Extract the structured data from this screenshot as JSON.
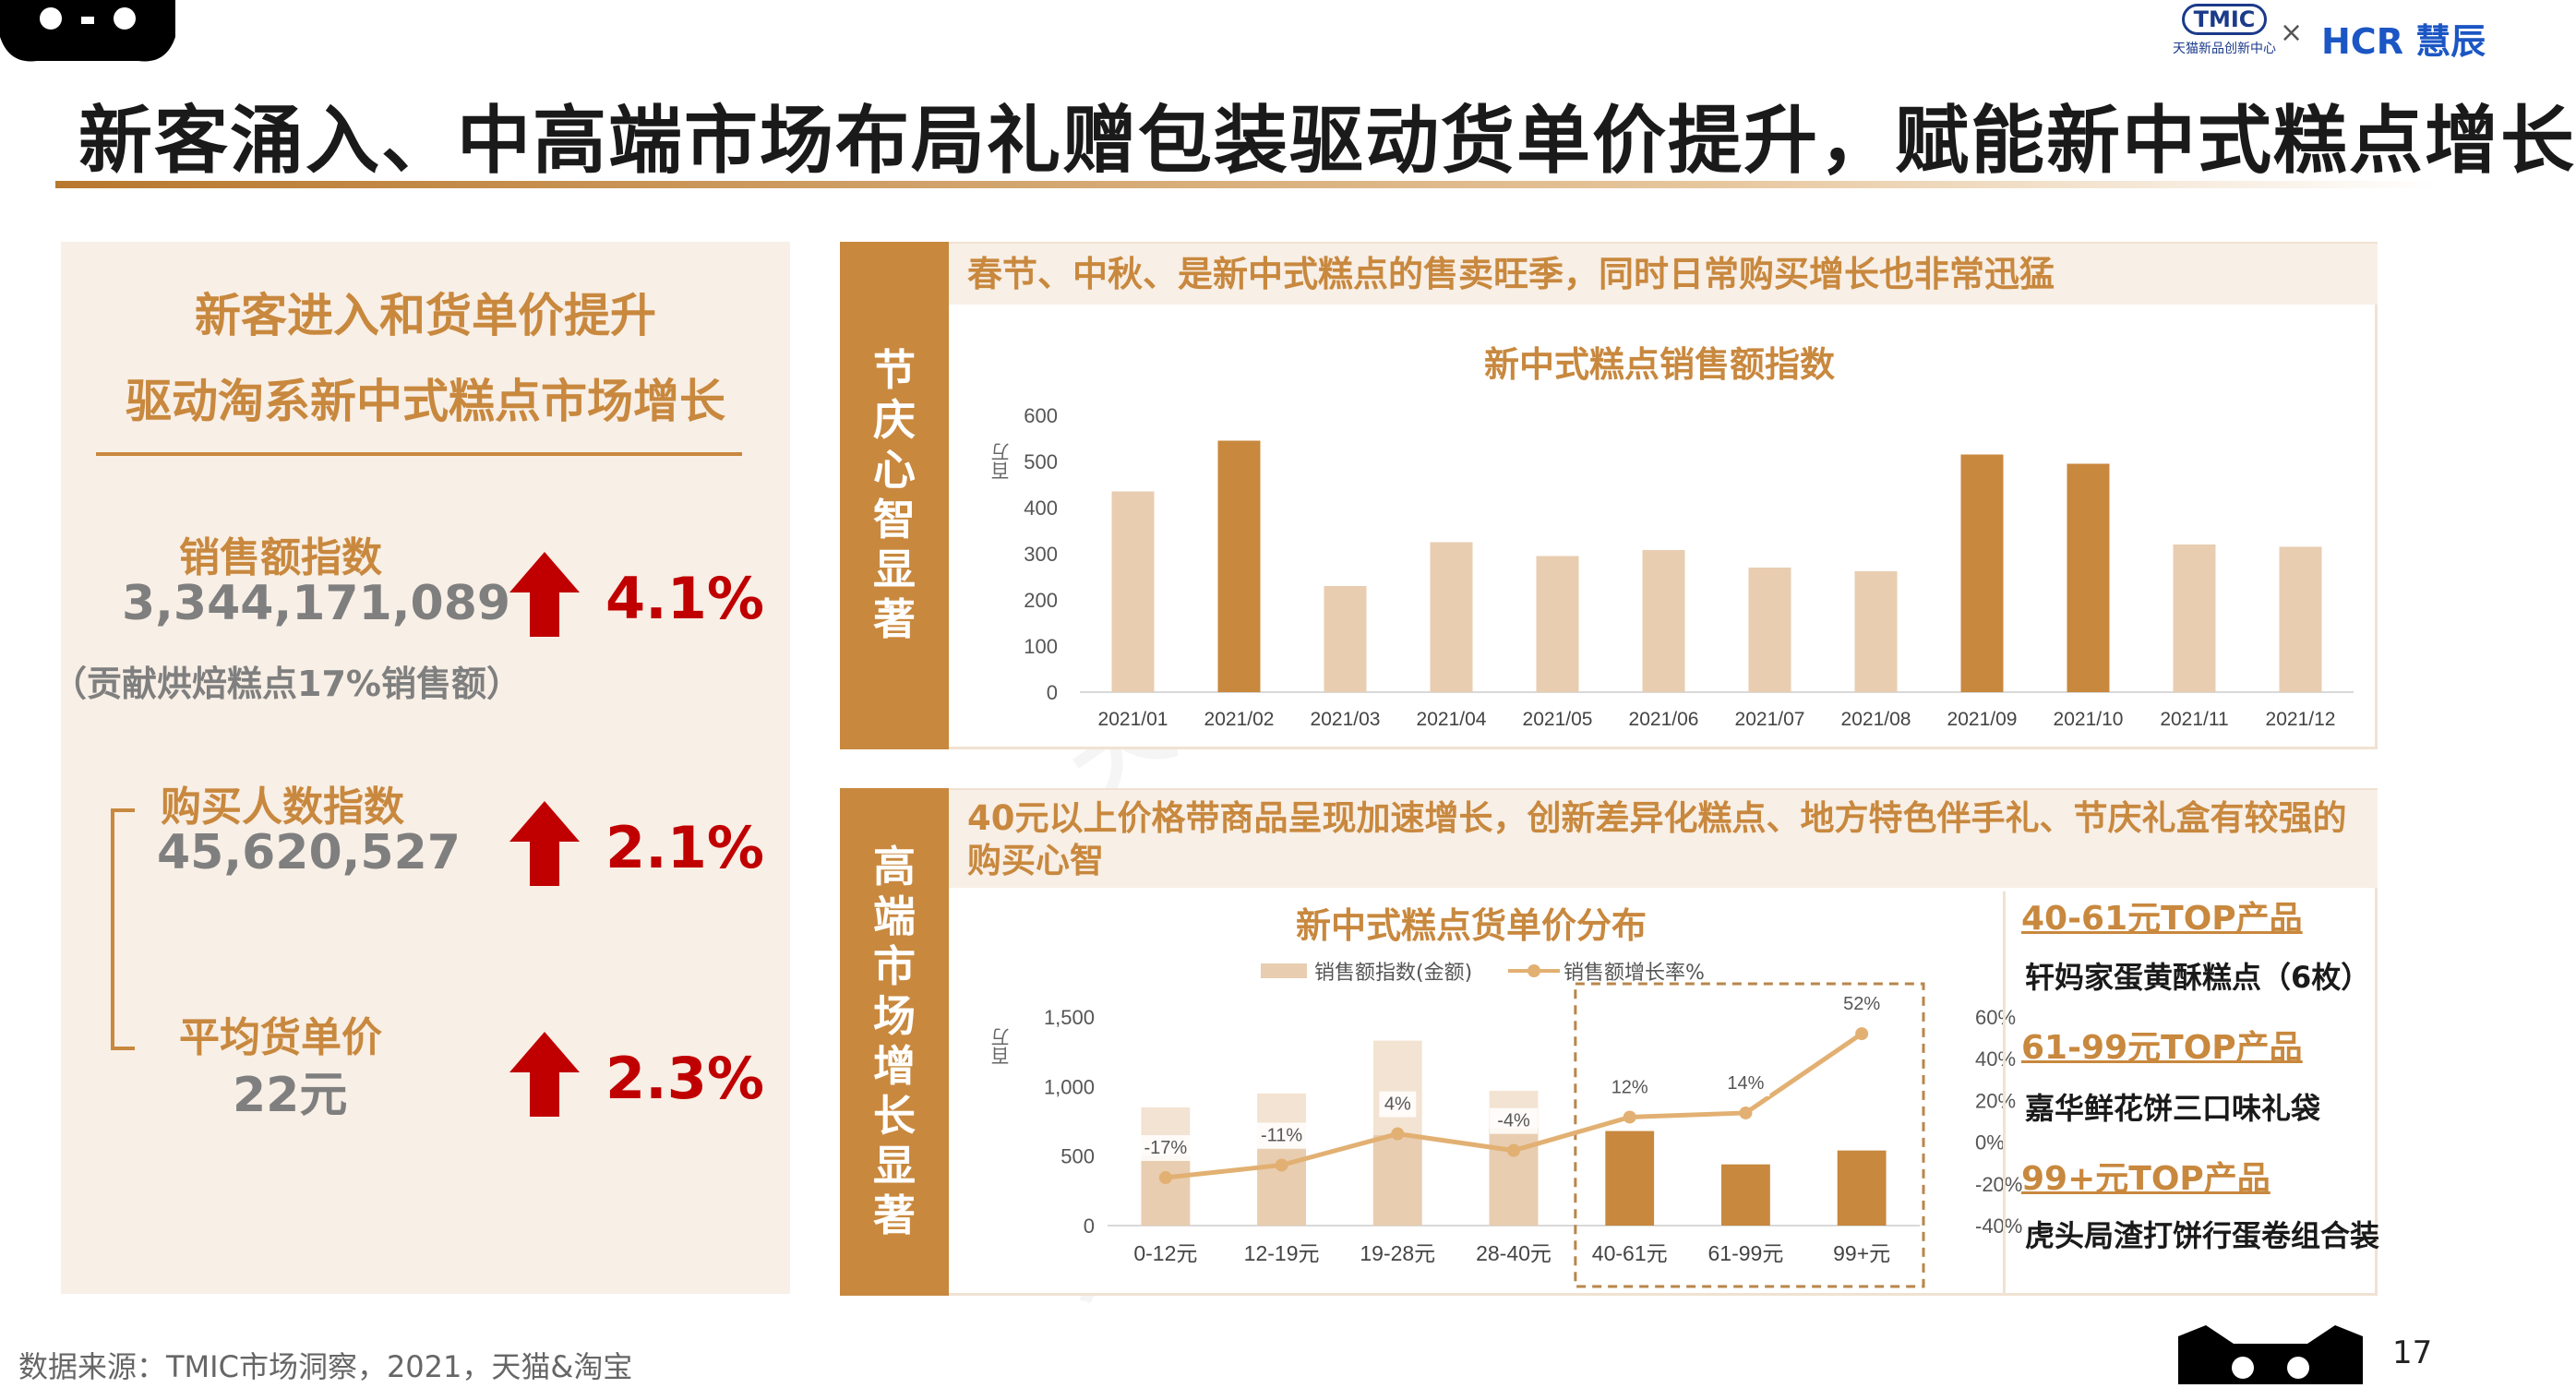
{
  "header": {
    "title": "新客涌入、中高端市场布局礼赠包装驱动货单价提升，赋能新中式糕点增长",
    "logo_tmic": "TMIC",
    "logo_tmic_sub": "天猫新品创新中心",
    "logo_cross": "×",
    "logo_hcr": "HCR 慧辰"
  },
  "left": {
    "heading1": "新客进入和货单价提升",
    "heading2": "驱动淘系新中式糕点市场增长",
    "metrics": [
      {
        "label": "销售额指数",
        "value": "3,344,171,089",
        "pct": "4.1%"
      },
      {
        "label": "购买人数指数",
        "value": "45,620,527",
        "pct": "2.1%"
      },
      {
        "label": "平均货单价",
        "value": "22元",
        "pct": "2.3%"
      }
    ],
    "note": "（贡献烘焙糕点17%销售额）"
  },
  "top_section": {
    "side_label": "节庆心智显著",
    "band": "春节、中秋、是新中式糕点的售卖旺季，同时日常购买增长也非常迅猛",
    "chart_title": "新中式糕点销售额指数",
    "y_unit": "百万"
  },
  "bottom_section": {
    "side_label": "高端市场增长显著",
    "band": "40元以上价格带商品呈现加速增长，创新差异化糕点、地方特色伴手礼、节庆礼盒有较强的购买心智",
    "chart_title": "新中式糕点货单价分布",
    "legend_bar": "销售额指数(金额)",
    "legend_line": "销售额增长率%",
    "y_unit": "百万"
  },
  "top_products": [
    {
      "range": "40-61元TOP产品",
      "product": "轩妈家蛋黄酥糕点（6枚）"
    },
    {
      "range": "61-99元TOP产品",
      "product": "嘉华鲜花饼三口味礼袋"
    },
    {
      "range": "99+元TOP产品",
      "product": "虎头局渣打饼行蛋卷组合装"
    }
  ],
  "footer": {
    "source": "数据来源：TMIC市场洞察，2021，天猫&淘宝",
    "page": "17"
  },
  "colors": {
    "accent": "#c8883e",
    "light": "#e8cdb0",
    "panel": "#f8efe6",
    "up": "#c00000"
  },
  "chart_data": [
    {
      "type": "bar",
      "title": "新中式糕点销售额指数",
      "ylabel": "百万",
      "ylim": [
        0,
        600
      ],
      "yticks": [
        0,
        100,
        200,
        300,
        400,
        500,
        600
      ],
      "categories": [
        "2021/01",
        "2021/02",
        "2021/03",
        "2021/04",
        "2021/05",
        "2021/06",
        "2021/07",
        "2021/08",
        "2021/09",
        "2021/10",
        "2021/11",
        "2021/12"
      ],
      "values": [
        435,
        545,
        230,
        325,
        295,
        308,
        270,
        262,
        515,
        495,
        320,
        315
      ],
      "highlight": [
        false,
        true,
        false,
        false,
        false,
        false,
        false,
        false,
        true,
        true,
        false,
        false
      ]
    },
    {
      "type": "bar+line",
      "title": "新中式糕点货单价分布",
      "categories": [
        "0-12元",
        "12-19元",
        "19-28元",
        "28-40元",
        "40-61元",
        "61-99元",
        "99+元"
      ],
      "series": [
        {
          "name": "销售额指数(金额)",
          "type": "bar",
          "axis": "left",
          "values": [
            850,
            950,
            1330,
            970,
            680,
            440,
            540
          ],
          "inner_values": [
            500,
            550,
            650,
            700,
            680,
            440,
            540
          ]
        },
        {
          "name": "销售额增长率%",
          "type": "line",
          "axis": "right",
          "values": [
            -17,
            -11,
            4,
            -4,
            12,
            14,
            52
          ],
          "labels": [
            "-17%",
            "-11%",
            "4%",
            "-4%",
            "12%",
            "14%",
            "52%"
          ]
        }
      ],
      "ylim_left": [
        0,
        1500
      ],
      "yticks_left": [
        "0",
        "500",
        "1,000",
        "1,500"
      ],
      "ylim_right": [
        -40,
        60
      ],
      "yticks_right": [
        "-40%",
        "-20%",
        "0%",
        "20%",
        "40%",
        "60%"
      ],
      "highlight": [
        false,
        false,
        false,
        false,
        true,
        true,
        true
      ]
    }
  ]
}
